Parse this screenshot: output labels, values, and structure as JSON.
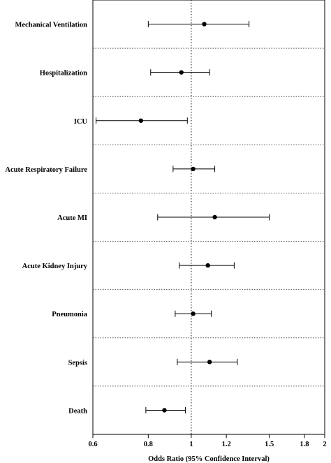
{
  "chart_data": {
    "type": "forest",
    "title": "",
    "xlabel": "Odds Ratio (95% Confidence Interval)",
    "ylabel": "",
    "x_scale": "log",
    "xlim": [
      0.6,
      2
    ],
    "x_ticks": [
      0.6,
      0.8,
      1,
      1.2,
      1.5,
      1.8,
      2
    ],
    "x_tick_labels": [
      "0.6",
      "0.8",
      "1",
      "1.2",
      "1.5",
      "1.8",
      "2"
    ],
    "reference_line": 1,
    "grid": false,
    "row_separators": "dotted",
    "rows": [
      {
        "label": "Mechanical Ventilation",
        "estimate": 1.07,
        "lower": 0.8,
        "upper": 1.35
      },
      {
        "label": "Hospitalization",
        "estimate": 0.95,
        "lower": 0.81,
        "upper": 1.1
      },
      {
        "label": "ICU",
        "estimate": 0.77,
        "lower": 0.61,
        "upper": 0.98
      },
      {
        "label": "Acute Respiratory Failure",
        "estimate": 1.01,
        "lower": 0.91,
        "upper": 1.13
      },
      {
        "label": "Acute MI",
        "estimate": 1.13,
        "lower": 0.84,
        "upper": 1.5
      },
      {
        "label": "Acute Kidney Injury",
        "estimate": 1.09,
        "lower": 0.94,
        "upper": 1.25
      },
      {
        "label": "Pneumonia",
        "estimate": 1.01,
        "lower": 0.92,
        "upper": 1.11
      },
      {
        "label": "Sepsis",
        "estimate": 1.1,
        "lower": 0.93,
        "upper": 1.27
      },
      {
        "label": "Death",
        "estimate": 0.87,
        "lower": 0.79,
        "upper": 0.97
      }
    ],
    "colors": {
      "marker": "#000000",
      "line": "#000000",
      "frame": "#000000",
      "separator": "#555555"
    }
  }
}
